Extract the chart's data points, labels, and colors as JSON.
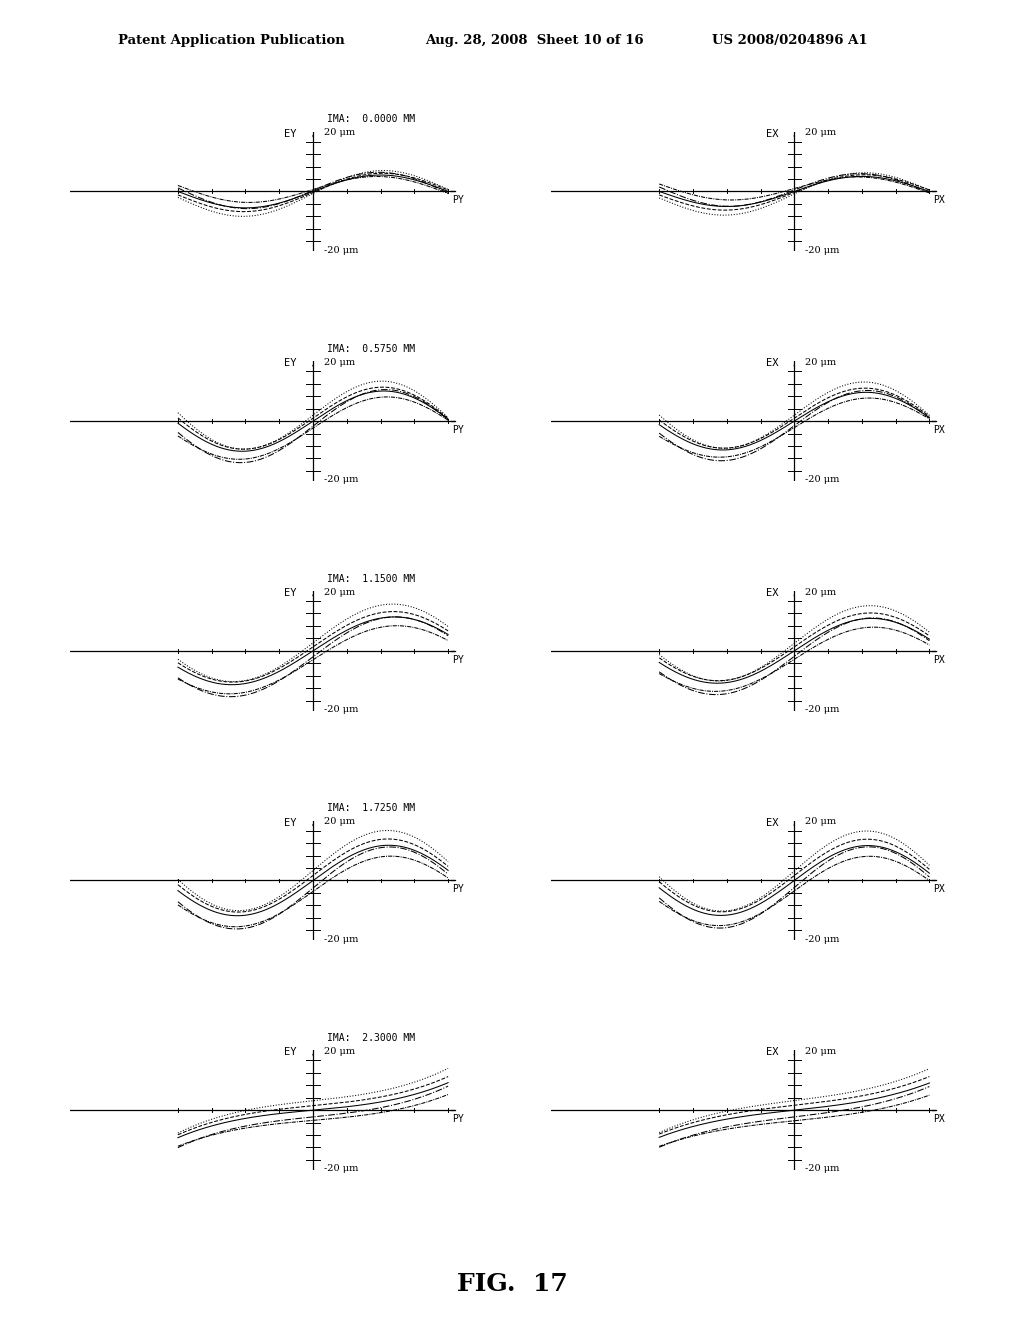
{
  "header_left": "Patent Application Publication",
  "header_mid": "Aug. 28, 2008  Sheet 10 of 16",
  "header_right": "US 2008/0204896 A1",
  "figure_label": "FIG.  17",
  "ima_values": [
    "0.0000",
    "0.5750",
    "1.1500",
    "1.7250",
    "2.3000"
  ],
  "left_axis_label": "EY",
  "right_axis_label": "EX",
  "left_x_label": "PY",
  "right_x_label": "PX",
  "y_top_label": "20 μm",
  "y_bot_label": "-20 μm",
  "background_color": "#ffffff",
  "n_rows": 5,
  "n_cols": 2
}
